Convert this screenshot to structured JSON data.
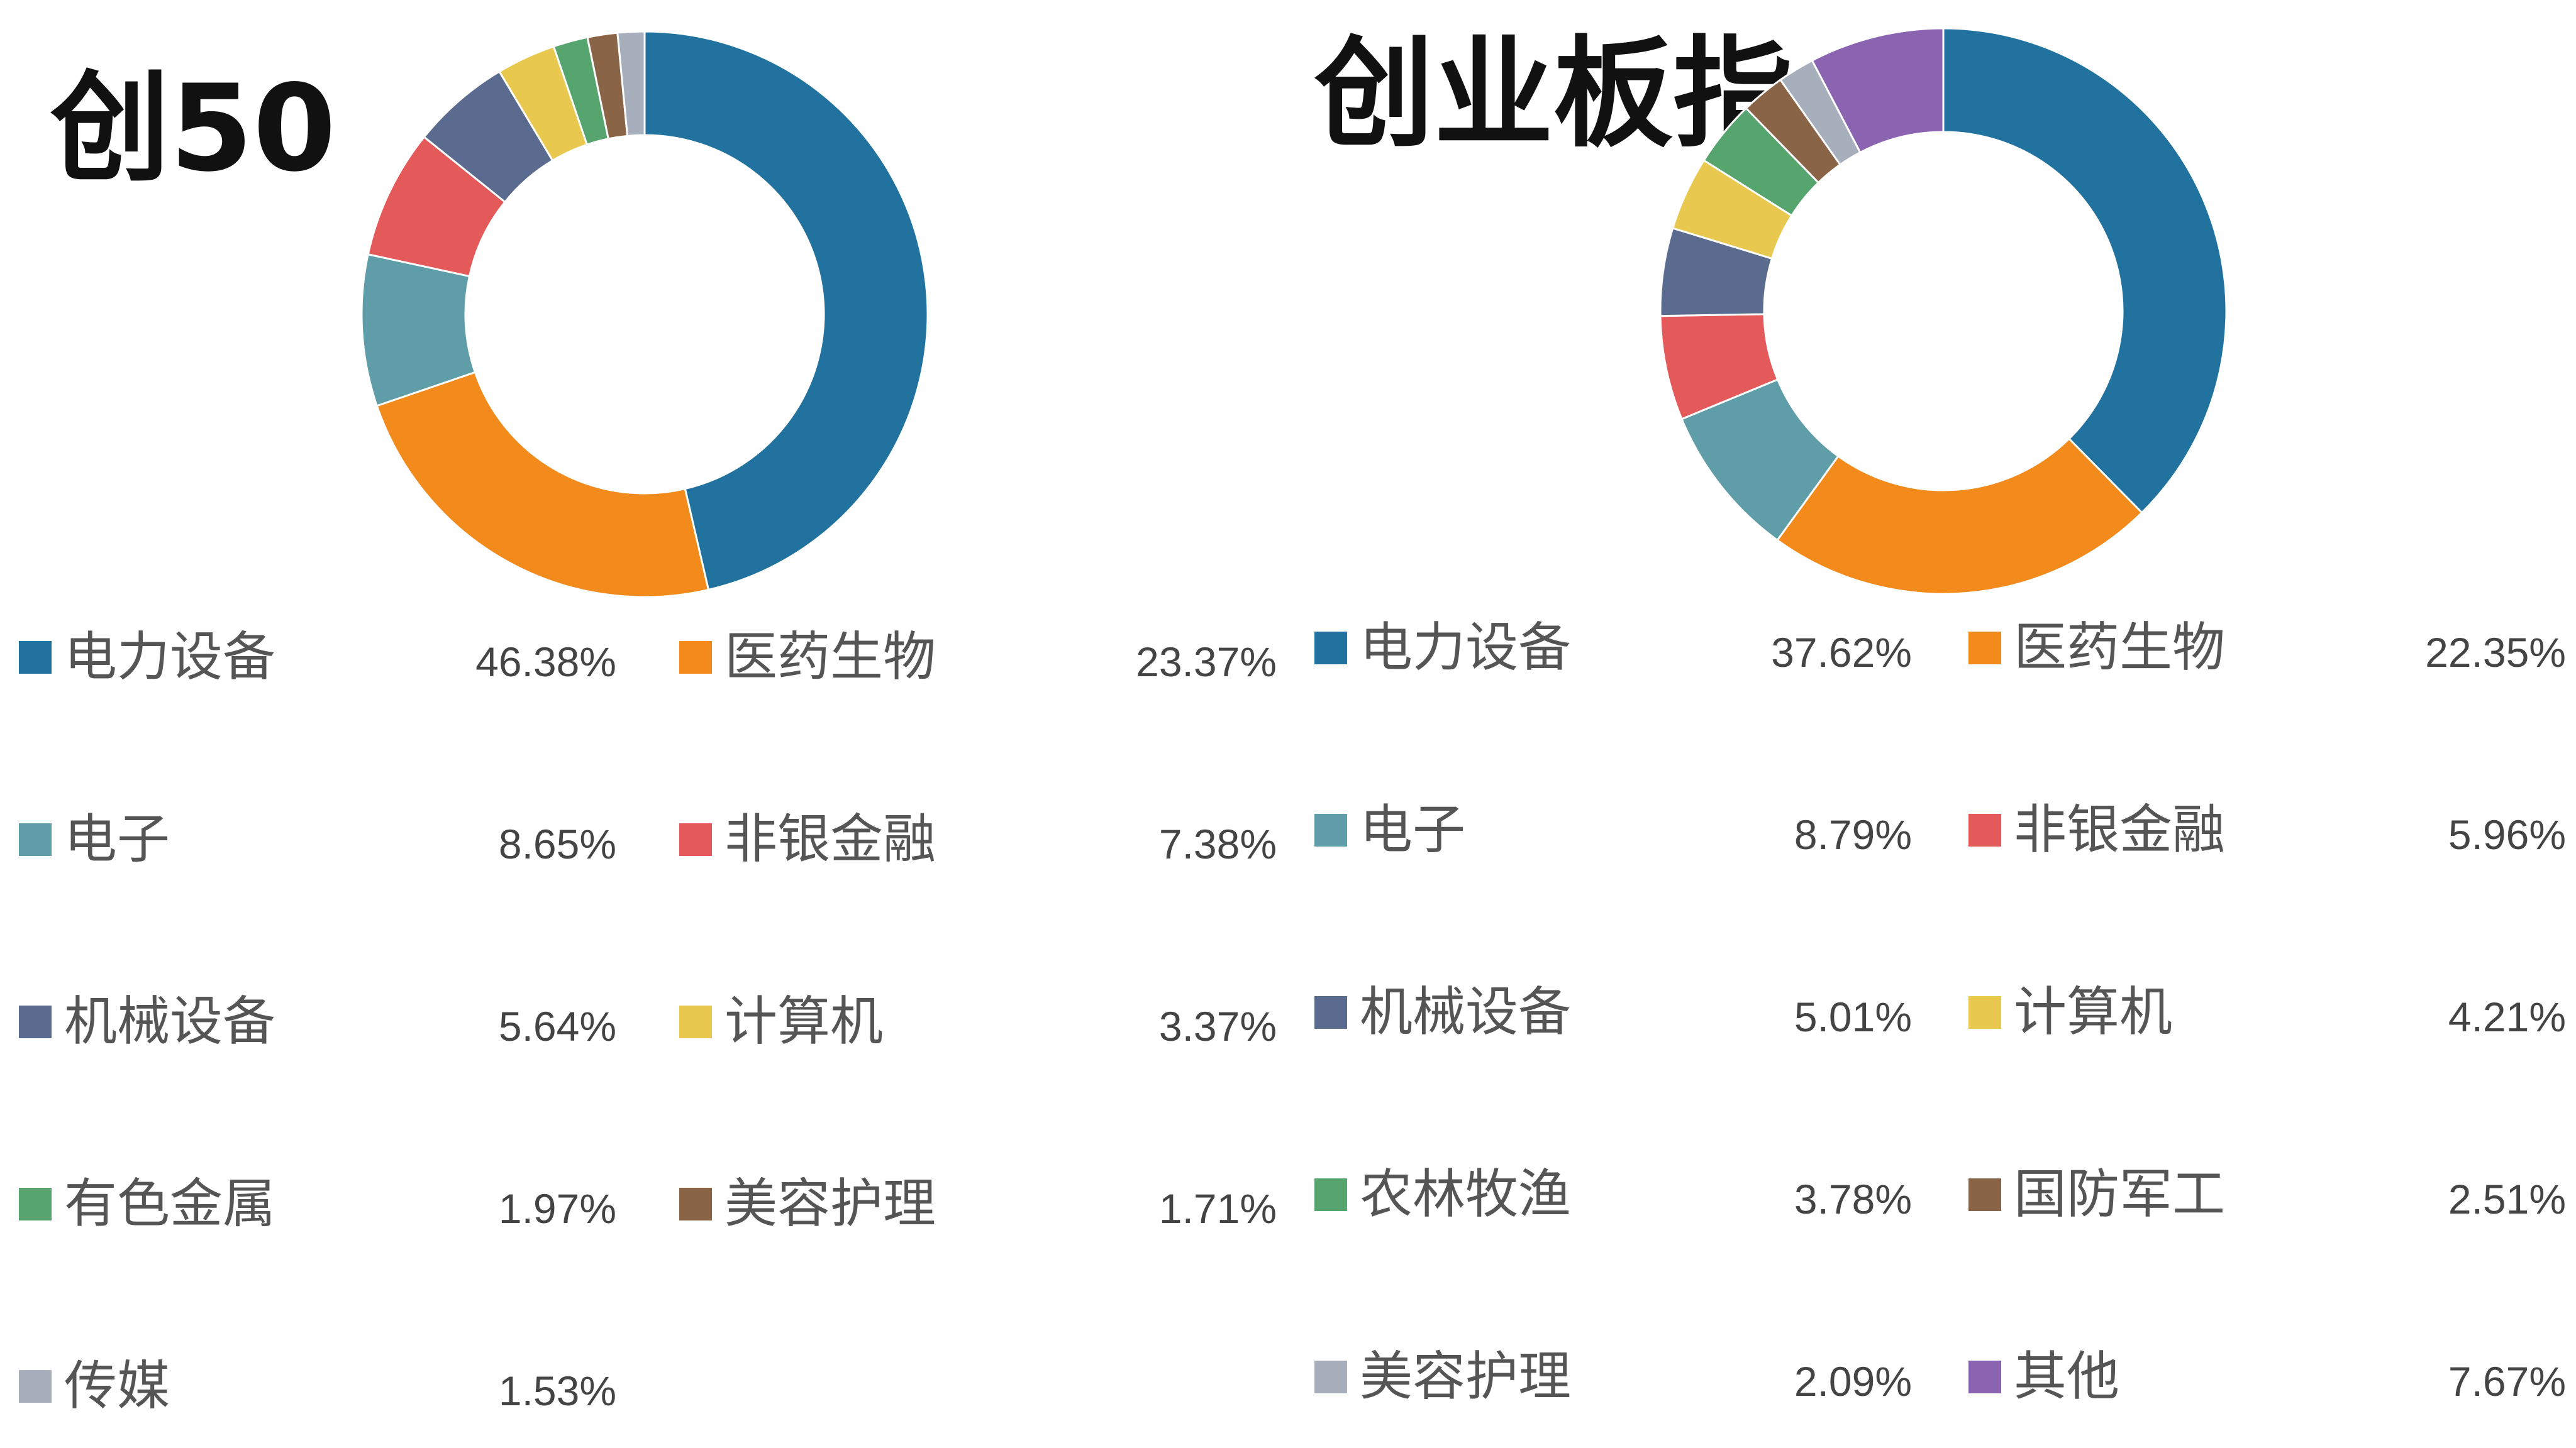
{
  "chart_data": [
    {
      "type": "pie",
      "title": "创50",
      "series": [
        {
          "label": "电力设备",
          "value": 46.38,
          "value_text": "46.38%",
          "color": "#21729f"
        },
        {
          "label": "医药生物",
          "value": 23.37,
          "value_text": "23.37%",
          "color": "#f28a1c"
        },
        {
          "label": "电子",
          "value": 8.65,
          "value_text": "8.65%",
          "color": "#5f9ea8"
        },
        {
          "label": "非银金融",
          "value": 7.38,
          "value_text": "7.38%",
          "color": "#e45a5a"
        },
        {
          "label": "机械设备",
          "value": 5.64,
          "value_text": "5.64%",
          "color": "#5b6b8f"
        },
        {
          "label": "计算机",
          "value": 3.37,
          "value_text": "3.37%",
          "color": "#e8c84e"
        },
        {
          "label": "有色金属",
          "value": 1.97,
          "value_text": "1.97%",
          "color": "#56a46e"
        },
        {
          "label": "美容护理",
          "value": 1.71,
          "value_text": "1.71%",
          "color": "#8a6446"
        },
        {
          "label": "传媒",
          "value": 1.53,
          "value_text": "1.53%",
          "color": "#a7aebc"
        }
      ]
    },
    {
      "type": "pie",
      "title": "创业板指",
      "series": [
        {
          "label": "电力设备",
          "value": 37.62,
          "value_text": "37.62%",
          "color": "#21729f"
        },
        {
          "label": "医药生物",
          "value": 22.35,
          "value_text": "22.35%",
          "color": "#f28a1c"
        },
        {
          "label": "电子",
          "value": 8.79,
          "value_text": "8.79%",
          "color": "#5f9ea8"
        },
        {
          "label": "非银金融",
          "value": 5.96,
          "value_text": "5.96%",
          "color": "#e45a5a"
        },
        {
          "label": "机械设备",
          "value": 5.01,
          "value_text": "5.01%",
          "color": "#5b6b8f"
        },
        {
          "label": "计算机",
          "value": 4.21,
          "value_text": "4.21%",
          "color": "#e8c84e"
        },
        {
          "label": "农林牧渔",
          "value": 3.78,
          "value_text": "3.78%",
          "color": "#56a46e"
        },
        {
          "label": "国防军工",
          "value": 2.51,
          "value_text": "2.51%",
          "color": "#8a6446"
        },
        {
          "label": "美容护理",
          "value": 2.09,
          "value_text": "2.09%",
          "color": "#a7aebc"
        },
        {
          "label": "其他",
          "value": 7.67,
          "value_text": "7.67%",
          "color": "#8a64b0"
        }
      ]
    }
  ]
}
